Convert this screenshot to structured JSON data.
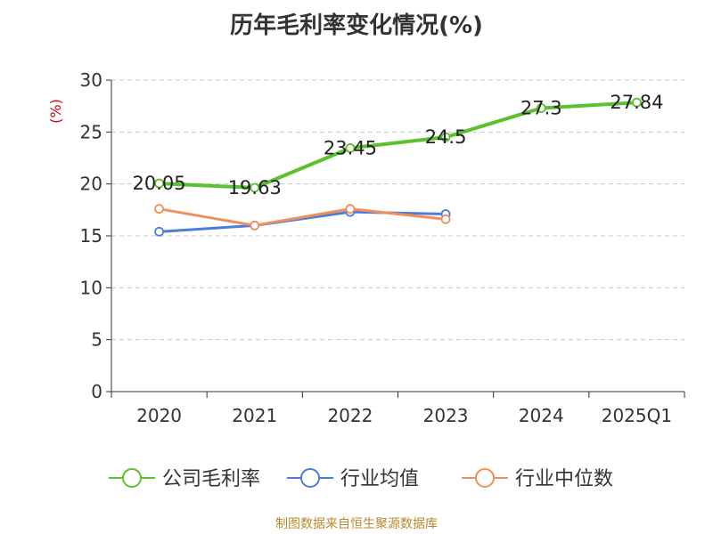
{
  "title": "历年毛利率变化情况(%)",
  "footer": "制图数据来自恒生聚源数据库",
  "chart_data": {
    "type": "line",
    "unit_label": "(%)",
    "categories": [
      "2020",
      "2021",
      "2022",
      "2023",
      "2024",
      "2025Q1"
    ],
    "ylim": [
      0,
      30
    ],
    "yticks": [
      "0",
      "5",
      "10",
      "15",
      "20",
      "25",
      "30"
    ],
    "grid": true,
    "legend_position": "bottom",
    "series": [
      {
        "name": "公司毛利率",
        "color": "#5cc12f",
        "values": [
          20.05,
          19.63,
          23.45,
          24.5,
          27.3,
          27.84
        ],
        "labels": [
          "20.05",
          "19.63",
          "23.45",
          "24.5",
          "27.3",
          "27.84"
        ],
        "show_labels": true
      },
      {
        "name": "行业均值",
        "color": "#4a7fd8",
        "values": [
          15.4,
          16.0,
          17.3,
          17.1,
          null,
          null
        ],
        "show_labels": false
      },
      {
        "name": "行业中位数",
        "color": "#f08f5c",
        "values": [
          17.6,
          16.0,
          17.6,
          16.6,
          null,
          null
        ],
        "show_labels": false
      }
    ]
  }
}
